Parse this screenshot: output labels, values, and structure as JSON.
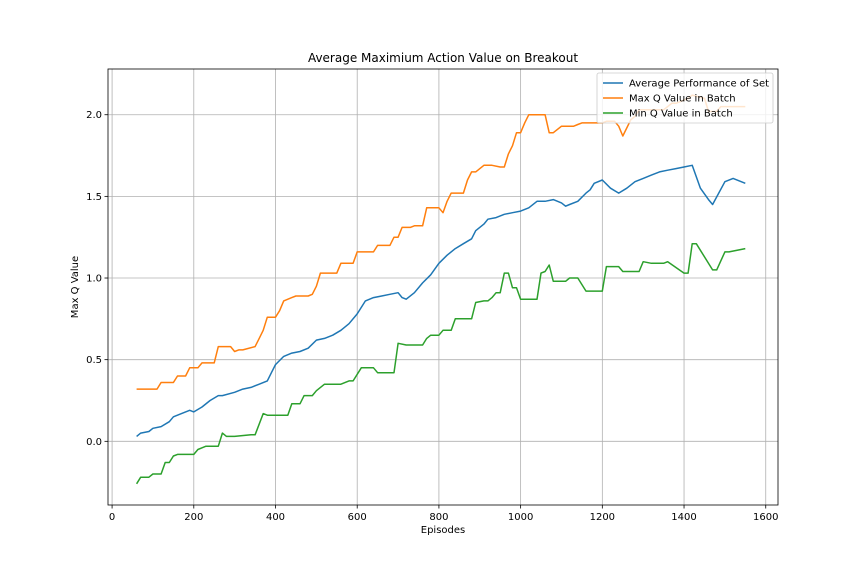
{
  "chart_data": {
    "type": "line",
    "title": "Average Maximium Action Value on Breakout",
    "xlabel": "Episodes",
    "ylabel": "Max Q Value",
    "xlim": [
      -10,
      1630
    ],
    "ylim": [
      -0.39,
      2.28
    ],
    "xticks": [
      0,
      200,
      400,
      600,
      800,
      1000,
      1200,
      1400,
      1600
    ],
    "yticks": [
      0.0,
      0.5,
      1.0,
      1.5,
      2.0
    ],
    "ytick_labels": [
      "0.0",
      "0.5",
      "1.0",
      "1.5",
      "2.0"
    ],
    "grid": true,
    "legend_position": "top-right",
    "series": [
      {
        "name": "Average Performance of Set",
        "color": "#1f77b4",
        "x": [
          60,
          70,
          90,
          100,
          120,
          140,
          150,
          170,
          190,
          200,
          220,
          240,
          260,
          270,
          300,
          320,
          340,
          360,
          380,
          390,
          400,
          420,
          440,
          460,
          480,
          500,
          520,
          540,
          560,
          580,
          600,
          620,
          640,
          660,
          680,
          700,
          710,
          720,
          740,
          760,
          780,
          800,
          820,
          840,
          860,
          880,
          890,
          910,
          920,
          940,
          960,
          980,
          1000,
          1020,
          1040,
          1060,
          1080,
          1100,
          1110,
          1120,
          1140,
          1160,
          1170,
          1180,
          1200,
          1220,
          1240,
          1260,
          1280,
          1300,
          1320,
          1340,
          1360,
          1380,
          1400,
          1420,
          1440,
          1460,
          1470,
          1500,
          1520,
          1550
        ],
        "values": [
          0.03,
          0.05,
          0.06,
          0.08,
          0.09,
          0.12,
          0.15,
          0.17,
          0.19,
          0.18,
          0.21,
          0.25,
          0.28,
          0.28,
          0.3,
          0.32,
          0.33,
          0.35,
          0.37,
          0.42,
          0.47,
          0.52,
          0.54,
          0.55,
          0.57,
          0.62,
          0.63,
          0.65,
          0.68,
          0.72,
          0.78,
          0.86,
          0.88,
          0.89,
          0.9,
          0.91,
          0.88,
          0.87,
          0.91,
          0.97,
          1.02,
          1.09,
          1.14,
          1.18,
          1.21,
          1.24,
          1.29,
          1.33,
          1.36,
          1.37,
          1.39,
          1.4,
          1.41,
          1.43,
          1.47,
          1.47,
          1.48,
          1.46,
          1.44,
          1.45,
          1.47,
          1.52,
          1.54,
          1.58,
          1.6,
          1.55,
          1.52,
          1.55,
          1.59,
          1.61,
          1.63,
          1.65,
          1.66,
          1.67,
          1.68,
          1.69,
          1.55,
          1.48,
          1.45,
          1.59,
          1.61,
          1.58
        ]
      },
      {
        "name": "Max Q Value in Batch",
        "color": "#ff7f0e",
        "x": [
          60,
          90,
          110,
          120,
          140,
          150,
          160,
          180,
          190,
          200,
          210,
          220,
          250,
          260,
          290,
          300,
          310,
          320,
          350,
          360,
          370,
          380,
          400,
          410,
          420,
          440,
          450,
          480,
          490,
          500,
          510,
          540,
          550,
          560,
          580,
          590,
          600,
          630,
          640,
          650,
          670,
          680,
          690,
          700,
          710,
          730,
          740,
          760,
          770,
          800,
          810,
          820,
          830,
          860,
          870,
          880,
          890,
          910,
          930,
          950,
          960,
          970,
          980,
          990,
          1000,
          1010,
          1020,
          1060,
          1070,
          1080,
          1100,
          1130,
          1140,
          1150,
          1170,
          1180,
          1200,
          1210,
          1230,
          1240,
          1250,
          1270,
          1280,
          1290,
          1310,
          1330,
          1350,
          1370,
          1380,
          1410,
          1420,
          1450,
          1460,
          1480,
          1490,
          1550
        ],
        "values": [
          0.32,
          0.32,
          0.32,
          0.36,
          0.36,
          0.36,
          0.4,
          0.4,
          0.45,
          0.45,
          0.45,
          0.48,
          0.48,
          0.58,
          0.58,
          0.55,
          0.56,
          0.56,
          0.58,
          0.63,
          0.68,
          0.76,
          0.76,
          0.8,
          0.86,
          0.88,
          0.89,
          0.89,
          0.9,
          0.95,
          1.03,
          1.03,
          1.03,
          1.09,
          1.09,
          1.09,
          1.16,
          1.16,
          1.16,
          1.2,
          1.2,
          1.2,
          1.25,
          1.25,
          1.31,
          1.31,
          1.32,
          1.32,
          1.43,
          1.43,
          1.4,
          1.47,
          1.52,
          1.52,
          1.6,
          1.65,
          1.65,
          1.69,
          1.69,
          1.68,
          1.68,
          1.76,
          1.81,
          1.89,
          1.89,
          1.95,
          2.0,
          2.0,
          1.89,
          1.89,
          1.93,
          1.93,
          1.94,
          1.95,
          1.95,
          1.95,
          1.95,
          1.96,
          1.96,
          1.93,
          1.87,
          1.97,
          1.99,
          2.03,
          2.03,
          2.03,
          2.03,
          2.07,
          2.07,
          2.1,
          2.12,
          2.1,
          2.02,
          2.02,
          2.05,
          2.05
        ]
      },
      {
        "name": "Min Q Value in Batch",
        "color": "#2ca02c",
        "x": [
          60,
          70,
          90,
          100,
          120,
          130,
          140,
          150,
          160,
          200,
          210,
          220,
          230,
          260,
          270,
          280,
          300,
          340,
          350,
          370,
          380,
          390,
          430,
          440,
          460,
          470,
          490,
          500,
          520,
          540,
          560,
          580,
          590,
          610,
          640,
          650,
          690,
          700,
          720,
          760,
          770,
          780,
          800,
          810,
          830,
          840,
          850,
          880,
          890,
          910,
          920,
          930,
          940,
          950,
          960,
          970,
          980,
          990,
          1000,
          1040,
          1050,
          1060,
          1070,
          1080,
          1100,
          1110,
          1120,
          1140,
          1160,
          1170,
          1200,
          1210,
          1240,
          1250,
          1280,
          1290,
          1300,
          1320,
          1340,
          1350,
          1360,
          1400,
          1410,
          1420,
          1430,
          1470,
          1480,
          1500,
          1510,
          1550
        ],
        "values": [
          -0.26,
          -0.22,
          -0.22,
          -0.2,
          -0.2,
          -0.13,
          -0.13,
          -0.09,
          -0.08,
          -0.08,
          -0.05,
          -0.04,
          -0.03,
          -0.03,
          0.05,
          0.03,
          0.03,
          0.04,
          0.04,
          0.17,
          0.16,
          0.16,
          0.16,
          0.23,
          0.23,
          0.28,
          0.28,
          0.31,
          0.35,
          0.35,
          0.35,
          0.37,
          0.37,
          0.45,
          0.45,
          0.42,
          0.42,
          0.6,
          0.59,
          0.59,
          0.63,
          0.65,
          0.65,
          0.68,
          0.68,
          0.75,
          0.75,
          0.75,
          0.85,
          0.86,
          0.86,
          0.88,
          0.91,
          0.91,
          1.03,
          1.03,
          0.94,
          0.94,
          0.87,
          0.87,
          1.03,
          1.04,
          1.08,
          0.98,
          0.98,
          0.98,
          1.0,
          1.0,
          0.92,
          0.92,
          0.92,
          1.07,
          1.07,
          1.04,
          1.04,
          1.04,
          1.1,
          1.09,
          1.09,
          1.09,
          1.1,
          1.03,
          1.03,
          1.21,
          1.21,
          1.05,
          1.05,
          1.16,
          1.16,
          1.18
        ]
      }
    ]
  }
}
